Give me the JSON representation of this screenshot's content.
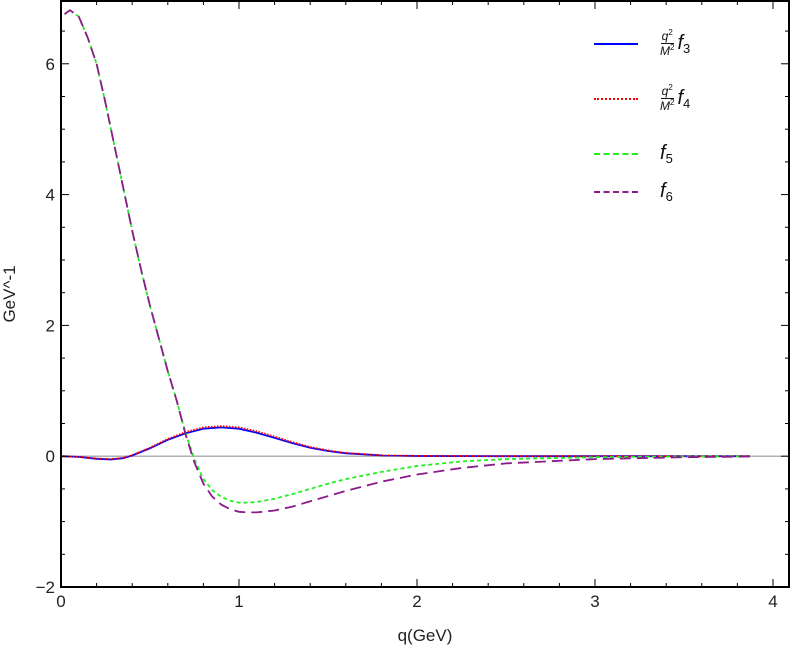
{
  "chart_data": {
    "type": "line",
    "title": "",
    "xlabel": "q(GeV)",
    "ylabel": "GeV^-1",
    "xlim": [
      0,
      4.09
    ],
    "ylim": [
      -2,
      6.96
    ],
    "xticks": [
      0,
      1,
      2,
      3,
      4
    ],
    "yticks": [
      -2,
      0,
      2,
      4,
      6
    ],
    "grid": false,
    "zero_line": true,
    "legend_position": "top-right",
    "series": [
      {
        "name": "q^2/M^2 f_3",
        "color": "#0000ff",
        "style": "solid",
        "x": [
          0,
          0.1,
          0.2,
          0.28,
          0.35,
          0.4,
          0.5,
          0.6,
          0.7,
          0.8,
          0.9,
          1.0,
          1.1,
          1.2,
          1.3,
          1.4,
          1.5,
          1.6,
          1.8,
          2.0,
          2.5,
          3.0,
          3.87
        ],
        "y": [
          0,
          -0.01,
          -0.04,
          -0.05,
          -0.03,
          0.01,
          0.12,
          0.25,
          0.35,
          0.42,
          0.44,
          0.42,
          0.36,
          0.28,
          0.2,
          0.13,
          0.08,
          0.045,
          0.012,
          0.003,
          0,
          0,
          0
        ]
      },
      {
        "name": "q^2/M^2 f_4",
        "color": "#ff0000",
        "style": "dotted",
        "x": [
          0,
          0.1,
          0.2,
          0.28,
          0.35,
          0.4,
          0.5,
          0.6,
          0.7,
          0.8,
          0.9,
          1.0,
          1.1,
          1.2,
          1.3,
          1.4,
          1.5,
          1.6,
          1.8,
          2.0,
          2.5,
          3.0,
          3.87
        ],
        "y": [
          0,
          -0.01,
          -0.035,
          -0.045,
          -0.025,
          0.015,
          0.13,
          0.265,
          0.37,
          0.44,
          0.46,
          0.44,
          0.38,
          0.3,
          0.215,
          0.14,
          0.088,
          0.05,
          0.014,
          0.004,
          0,
          0,
          0
        ]
      },
      {
        "name": "f_5",
        "color": "#22ee22",
        "style": "short-dash",
        "x": [
          0.02,
          0.05,
          0.1,
          0.15,
          0.2,
          0.25,
          0.3,
          0.35,
          0.4,
          0.45,
          0.5,
          0.55,
          0.6,
          0.65,
          0.7,
          0.75,
          0.8,
          0.85,
          0.9,
          0.95,
          1.0,
          1.05,
          1.1,
          1.2,
          1.3,
          1.4,
          1.5,
          1.6,
          1.8,
          2.0,
          2.25,
          2.5,
          3.0,
          3.5,
          3.87
        ],
        "y": [
          6.76,
          6.82,
          6.72,
          6.4,
          6.0,
          5.4,
          4.75,
          4.1,
          3.45,
          2.85,
          2.3,
          1.8,
          1.3,
          0.85,
          0.35,
          -0.05,
          -0.35,
          -0.52,
          -0.62,
          -0.68,
          -0.71,
          -0.71,
          -0.7,
          -0.65,
          -0.58,
          -0.5,
          -0.42,
          -0.35,
          -0.24,
          -0.15,
          -0.08,
          -0.045,
          -0.015,
          -0.005,
          0
        ]
      },
      {
        "name": "f_6",
        "color": "#8b1a8b",
        "style": "long-dash",
        "x": [
          0.02,
          0.05,
          0.1,
          0.15,
          0.2,
          0.25,
          0.3,
          0.35,
          0.4,
          0.45,
          0.5,
          0.55,
          0.6,
          0.65,
          0.7,
          0.75,
          0.8,
          0.85,
          0.9,
          0.95,
          1.0,
          1.05,
          1.1,
          1.2,
          1.3,
          1.4,
          1.5,
          1.6,
          1.8,
          2.0,
          2.25,
          2.5,
          3.0,
          3.5,
          3.87
        ],
        "y": [
          6.76,
          6.82,
          6.72,
          6.4,
          6.0,
          5.4,
          4.75,
          4.1,
          3.45,
          2.85,
          2.3,
          1.8,
          1.3,
          0.85,
          0.33,
          -0.1,
          -0.42,
          -0.62,
          -0.74,
          -0.81,
          -0.85,
          -0.86,
          -0.86,
          -0.83,
          -0.77,
          -0.69,
          -0.61,
          -0.53,
          -0.39,
          -0.28,
          -0.18,
          -0.11,
          -0.045,
          -0.015,
          -0.005
        ]
      }
    ],
    "legend": [
      {
        "num": "q",
        "num_sup": "2",
        "den": "M",
        "den_sup": "2",
        "fn": "f",
        "sub": "3"
      },
      {
        "num": "q",
        "num_sup": "2",
        "den": "M",
        "den_sup": "2",
        "fn": "f",
        "sub": "4"
      },
      {
        "fn": "f",
        "sub": "5"
      },
      {
        "fn": "f",
        "sub": "6"
      }
    ]
  }
}
